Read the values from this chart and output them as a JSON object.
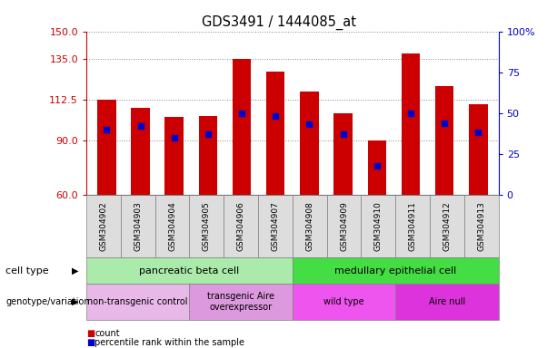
{
  "title": "GDS3491 / 1444085_at",
  "samples": [
    "GSM304902",
    "GSM304903",
    "GSM304904",
    "GSM304905",
    "GSM304906",
    "GSM304907",
    "GSM304908",
    "GSM304909",
    "GSM304910",
    "GSM304911",
    "GSM304912",
    "GSM304913"
  ],
  "counts": [
    112.5,
    108.0,
    103.0,
    103.5,
    135.0,
    128.0,
    117.0,
    105.0,
    90.0,
    138.0,
    120.0,
    110.0
  ],
  "percentile_ranks": [
    40,
    42,
    35,
    37,
    50,
    48,
    43,
    37,
    18,
    50,
    44,
    38
  ],
  "ylim_left": [
    60,
    150
  ],
  "yticks_left": [
    60,
    90,
    112.5,
    135,
    150
  ],
  "ylim_right": [
    0,
    100
  ],
  "yticks_right": [
    0,
    25,
    50,
    75,
    100
  ],
  "ytick_labels_right": [
    "0",
    "25",
    "50",
    "75",
    "100%"
  ],
  "bar_color": "#cc0000",
  "dot_color": "#0000cc",
  "bar_bottom": 60,
  "cell_type_groups": [
    {
      "label": "pancreatic beta cell",
      "start": 0,
      "end": 6,
      "color": "#aaeaaa"
    },
    {
      "label": "medullary epithelial cell",
      "start": 6,
      "end": 12,
      "color": "#44dd44"
    }
  ],
  "genotype_groups": [
    {
      "label": "non-transgenic control",
      "start": 0,
      "end": 3,
      "color": "#e8b8e8"
    },
    {
      "label": "transgenic Aire\noverexpressor",
      "start": 3,
      "end": 6,
      "color": "#dd99dd"
    },
    {
      "label": "wild type",
      "start": 6,
      "end": 9,
      "color": "#ee55ee"
    },
    {
      "label": "Aire null",
      "start": 9,
      "end": 12,
      "color": "#dd33dd"
    }
  ],
  "legend_items": [
    {
      "label": "count",
      "color": "#cc0000"
    },
    {
      "label": "percentile rank within the sample",
      "color": "#0000cc"
    }
  ],
  "background_color": "#ffffff",
  "grid_color": "#888888",
  "tick_bg_color": "#dddddd",
  "left_axis_color": "#cc0000",
  "right_axis_color": "#0000cc"
}
